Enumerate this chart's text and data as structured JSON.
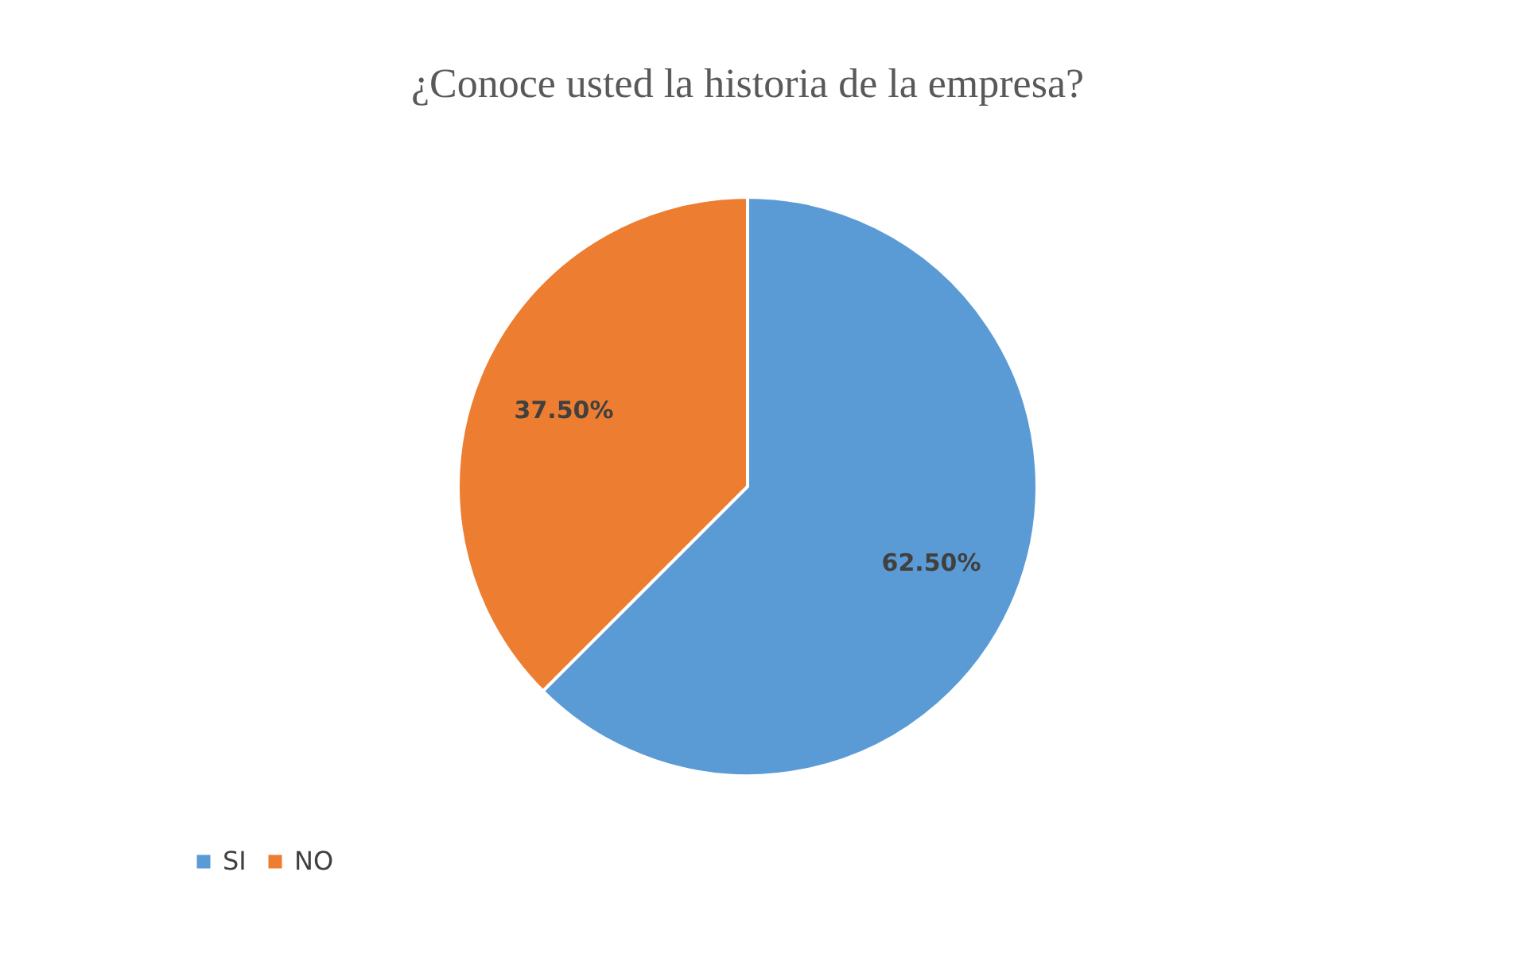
{
  "chart_data": {
    "type": "pie",
    "title": "¿Conoce usted la historia de la empresa?",
    "categories": [
      "SI",
      "NO"
    ],
    "values": [
      62.5,
      37.5
    ],
    "colors": [
      "#5b9bd5",
      "#ed7d31"
    ],
    "value_labels": [
      "62.50%",
      "37.50%"
    ],
    "legend": "bottom"
  }
}
